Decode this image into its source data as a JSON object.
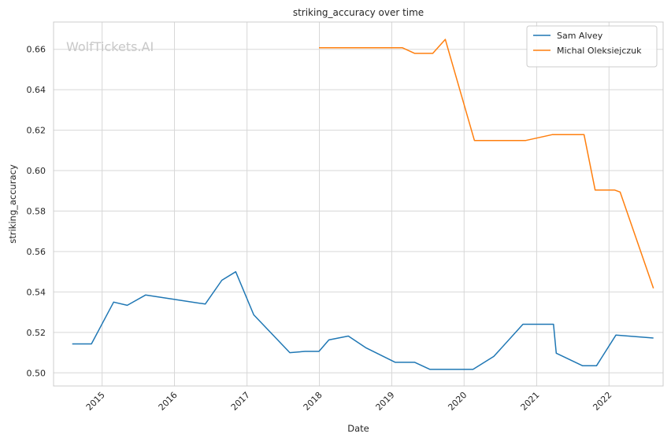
{
  "watermark": "WolfTickets.AI",
  "chart_data": {
    "type": "line",
    "title": "striking_accuracy over time",
    "xlabel": "Date",
    "ylabel": "striking_accuracy",
    "x_range": [
      "2014-05-01",
      "2022-10-01"
    ],
    "ylim": [
      0.4935,
      0.6735
    ],
    "x_ticks": [
      "2015",
      "2016",
      "2017",
      "2018",
      "2019",
      "2020",
      "2021",
      "2022"
    ],
    "y_ticks": [
      "0.50",
      "0.52",
      "0.54",
      "0.56",
      "0.58",
      "0.60",
      "0.62",
      "0.64",
      "0.66"
    ],
    "grid": true,
    "legend_position": "top-right",
    "series": [
      {
        "name": "Sam Alvey",
        "color": "#1f77b4",
        "points": [
          [
            "2014-08-03",
            0.5143
          ],
          [
            "2014-11-08",
            0.5143
          ],
          [
            "2015-02-28",
            0.535
          ],
          [
            "2015-05-08",
            0.5334
          ],
          [
            "2015-08-08",
            0.5385
          ],
          [
            "2016-06-04",
            0.534
          ],
          [
            "2016-08-27",
            0.5458
          ],
          [
            "2016-11-05",
            0.55
          ],
          [
            "2017-02-04",
            0.5287
          ],
          [
            "2017-08-05",
            0.51
          ],
          [
            "2017-10-21",
            0.5106
          ],
          [
            "2017-12-30",
            0.5106
          ],
          [
            "2018-02-18",
            0.5163
          ],
          [
            "2018-05-27",
            0.5182
          ],
          [
            "2018-08-25",
            0.5123
          ],
          [
            "2019-01-19",
            0.5052
          ],
          [
            "2019-04-27",
            0.5052
          ],
          [
            "2019-07-13",
            0.5017
          ],
          [
            "2020-02-15",
            0.5017
          ],
          [
            "2020-05-30",
            0.5081
          ],
          [
            "2020-10-24",
            0.524
          ],
          [
            "2021-03-27",
            0.524
          ],
          [
            "2021-04-10",
            0.5097
          ],
          [
            "2021-08-21",
            0.5035
          ],
          [
            "2021-10-30",
            0.5035
          ],
          [
            "2022-02-05",
            0.5187
          ],
          [
            "2022-08-13",
            0.5172
          ]
        ]
      },
      {
        "name": "Michal Oleksiejczuk",
        "color": "#ff7f0e",
        "points": [
          [
            "2017-12-30",
            0.6608
          ],
          [
            "2019-02-23",
            0.6608
          ],
          [
            "2019-04-27",
            0.658
          ],
          [
            "2019-07-27",
            0.658
          ],
          [
            "2019-09-28",
            0.6649
          ],
          [
            "2020-02-22",
            0.6149
          ],
          [
            "2020-11-07",
            0.6149
          ],
          [
            "2021-03-20",
            0.6178
          ],
          [
            "2021-08-28",
            0.6178
          ],
          [
            "2021-10-23",
            0.5904
          ],
          [
            "2022-01-30",
            0.5904
          ],
          [
            "2022-02-26",
            0.5894
          ],
          [
            "2022-08-13",
            0.5418
          ]
        ]
      }
    ]
  }
}
